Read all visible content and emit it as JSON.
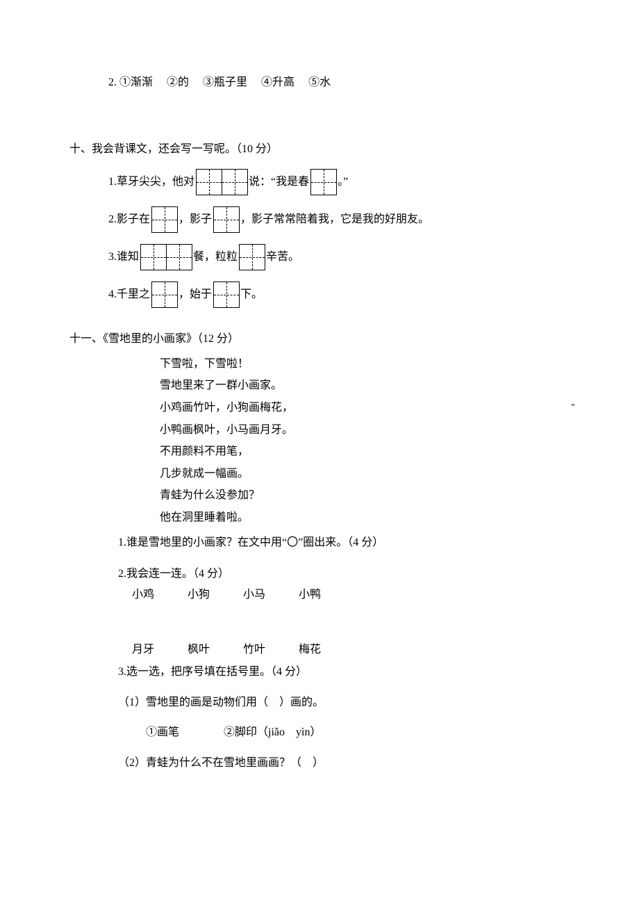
{
  "q9_item2": {
    "prefix": "2.",
    "opts": [
      "①渐渐",
      "②的",
      "③瓶子里",
      "④升高",
      "⑤水"
    ]
  },
  "q10": {
    "title": "十、我会背课文，还会写一写呢。（10 分）",
    "items": [
      {
        "num": "1.",
        "segs": [
          "草牙尖尖，他对",
          2,
          "说：“我是春",
          1,
          "。”"
        ]
      },
      {
        "num": "2.",
        "segs": [
          "影子在",
          1,
          "，影子",
          1,
          "，影子常常陪着我，它是我的好朋友。"
        ]
      },
      {
        "num": "3.",
        "segs": [
          "谁知",
          2,
          "餐，粒粒",
          1,
          "辛苦。"
        ]
      },
      {
        "num": "4.",
        "segs": [
          "千里之",
          1,
          "，始于",
          1,
          "下。"
        ]
      }
    ]
  },
  "q11": {
    "title": "十一、《雪地里的小画家》（12 分）",
    "poem": [
      "下雪啦，下雪啦！",
      "雪地里来了一群小画家。",
      "小鸡画竹叶，小狗画梅花，",
      "小鸭画枫叶，小马画月牙。",
      "不用颜料不用笔，",
      "几步就成一幅画。",
      "青蛙为什么没参加？",
      "他在洞里睡着啦。"
    ],
    "cursor": "＂",
    "sub1": "1.谁是雪地里的小画家？在文中用“〇”圈出来。（4 分）",
    "sub2": {
      "title": "2.我会连一连。（4 分）",
      "row1": [
        "小鸡",
        "小狗",
        "小马",
        "小鸭"
      ],
      "row2": [
        "月牙",
        "枫叶",
        "竹叶",
        "梅花"
      ]
    },
    "sub3": {
      "title": "3.选一选，把序号填在括号里。（4 分）",
      "q1": "（1）雪地里的画是动物们用（　）画的。",
      "q1_opts": "①画笔　　　　②脚印（jiǎo　yìn）",
      "q2": "（2）青蛙为什么不在雪地里画画？（　）"
    }
  }
}
